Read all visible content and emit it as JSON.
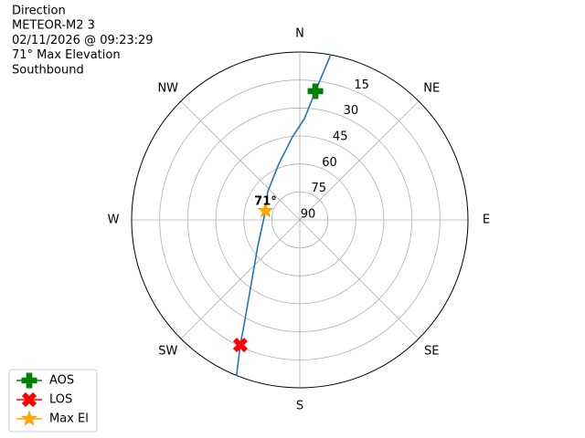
{
  "chart_data": {
    "type": "polar",
    "title_lines": [
      "Direction",
      "METEOR-M2 3",
      "02/11/2026 @ 09:23:29",
      "71° Max Elevation",
      "Southbound"
    ],
    "rlim": [
      90,
      0
    ],
    "rticks": [
      90,
      75,
      60,
      45,
      30,
      15
    ],
    "thetaticks": [
      {
        "value": 0,
        "label": "N"
      },
      {
        "value": 45,
        "label": "NE"
      },
      {
        "value": 90,
        "label": "E"
      },
      {
        "value": 135,
        "label": "SE"
      },
      {
        "value": 180,
        "label": "S"
      },
      {
        "value": 225,
        "label": "SW"
      },
      {
        "value": 270,
        "label": "W"
      },
      {
        "value": 315,
        "label": "NW"
      }
    ],
    "grid": true,
    "track": {
      "color": "#1f77b4",
      "azimuth": [
        10.6,
        6.9,
        2.6,
        355,
        339.3,
        311.5,
        285,
        237.8,
        217.5,
        208.8,
        205.4,
        202.1
      ],
      "elevation": [
        0,
        20.5,
        35.7,
        45.3,
        58.1,
        67.1,
        71,
        63.4,
        47.4,
        29.2,
        15.8,
        0
      ]
    },
    "series": [
      {
        "name": "AOS",
        "color": "#008000",
        "marker": "plus",
        "azimuth": [
          6.9
        ],
        "elevation": [
          20.5
        ]
      },
      {
        "name": "LOS",
        "color": "#ff0000",
        "marker": "x",
        "azimuth": [
          205.4
        ],
        "elevation": [
          15.8
        ]
      },
      {
        "name": "Max El",
        "color": "#ffa500",
        "marker": "star",
        "azimuth": [
          285
        ],
        "elevation": [
          71
        ]
      }
    ],
    "annotation": {
      "text": "71°",
      "azimuth": 285,
      "elevation": 71
    },
    "legend": "lower left"
  }
}
